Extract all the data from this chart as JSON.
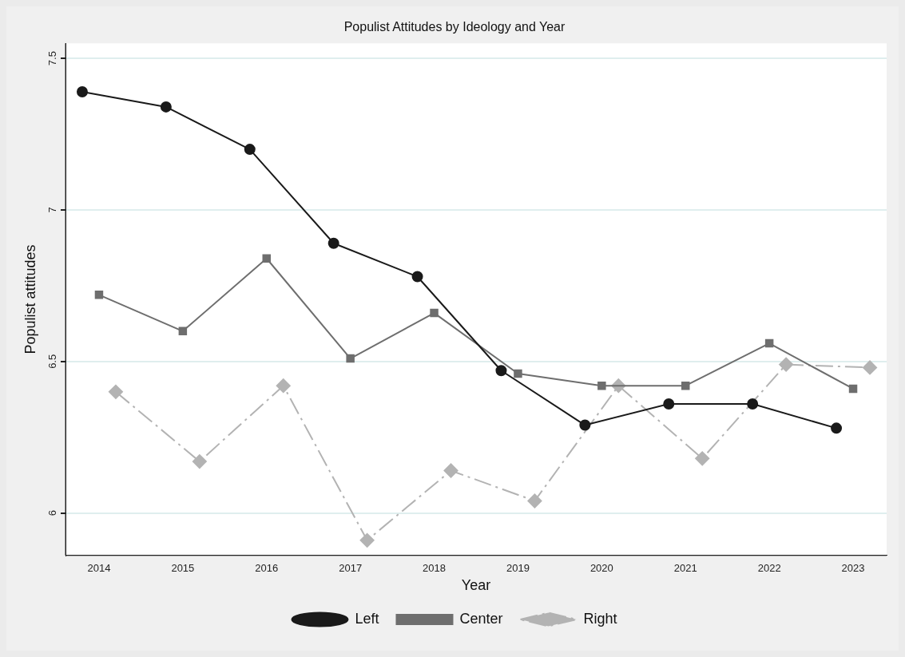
{
  "chart_data": {
    "type": "line",
    "title": "Populist Attitudes by Ideology and Year",
    "xlabel": "Year",
    "ylabel": "Populist attitudes",
    "xlim": [
      2013.6,
      2023.4
    ],
    "xticks": [
      2014,
      2015,
      2016,
      2017,
      2018,
      2019,
      2020,
      2021,
      2022,
      2023
    ],
    "ylim": [
      5.86,
      7.55
    ],
    "yticks": [
      6,
      6.5,
      7,
      7.5
    ],
    "grid": "y",
    "legend": "bottom",
    "series": [
      {
        "name": "Left",
        "color": "#1a1a1a",
        "marker": "circle",
        "line_style": "solid",
        "x": [
          2013.8,
          2014.8,
          2015.8,
          2016.8,
          2017.8,
          2018.8,
          2019.8,
          2020.8,
          2021.8,
          2022.8
        ],
        "values": [
          7.39,
          7.34,
          7.2,
          6.89,
          6.78,
          6.47,
          6.29,
          6.36,
          6.36,
          6.28
        ]
      },
      {
        "name": "Center",
        "color": "#6e6e6e",
        "marker": "square",
        "line_style": "solid",
        "x": [
          2014,
          2015,
          2016,
          2017,
          2018,
          2019,
          2020,
          2021,
          2022,
          2023
        ],
        "values": [
          6.72,
          6.6,
          6.84,
          6.51,
          6.66,
          6.46,
          6.42,
          6.42,
          6.56,
          6.41
        ]
      },
      {
        "name": "Right",
        "color": "#b3b3b3",
        "marker": "diamond",
        "line_style": "dashed",
        "x": [
          2014.2,
          2015.2,
          2016.2,
          2017.2,
          2018.2,
          2019.2,
          2020.2,
          2021.2,
          2022.2,
          2023.2
        ],
        "values": [
          6.4,
          6.17,
          6.42,
          5.91,
          6.14,
          6.04,
          6.42,
          6.18,
          6.49,
          6.48
        ]
      }
    ]
  }
}
